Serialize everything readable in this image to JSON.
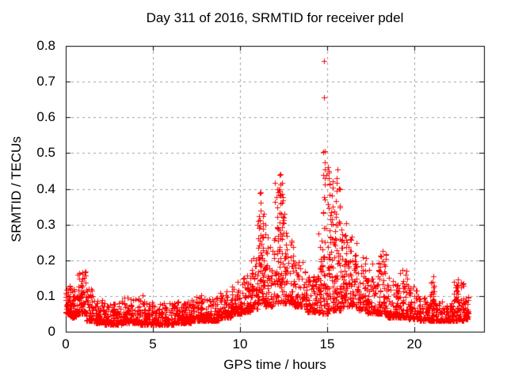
{
  "chart_data": {
    "type": "scatter",
    "title": "Day 311 of 2016, SRMTID for receiver pdel",
    "xlabel": "GPS time / hours",
    "ylabel": "SRMTID / TECUs",
    "xlim": [
      0,
      24
    ],
    "ylim": [
      0,
      0.8
    ],
    "xticks": [
      0,
      5,
      10,
      15,
      20
    ],
    "xticklabels": [
      "0",
      "5",
      "10",
      "15",
      "20"
    ],
    "yticks": [
      0,
      0.1,
      0.2,
      0.3,
      0.4,
      0.5,
      0.6,
      0.7,
      0.8
    ],
    "yticklabels": [
      "0",
      "0.1",
      "0.2",
      "0.3",
      "0.4",
      "0.5",
      "0.6",
      "0.7",
      "0.8"
    ],
    "grid": true,
    "legend": "none",
    "axis_color": "#000000",
    "grid_color": "#9e9e9e",
    "marker": {
      "shape": "plus",
      "color": "#ff0000",
      "size": 7
    },
    "bands_format": "[t_start_h, t_end_h, y_min_TECU, y_max_TECU, n_points] envelope of the dense scatter band",
    "bands": [
      [
        0.0,
        0.25,
        0.05,
        0.13,
        40
      ],
      [
        0.25,
        0.6,
        0.04,
        0.12,
        50
      ],
      [
        0.6,
        1.15,
        0.05,
        0.17,
        70
      ],
      [
        1.15,
        1.6,
        0.03,
        0.12,
        55
      ],
      [
        1.6,
        2.2,
        0.025,
        0.09,
        70
      ],
      [
        2.2,
        3.2,
        0.02,
        0.08,
        110
      ],
      [
        3.2,
        4.2,
        0.025,
        0.095,
        110
      ],
      [
        4.2,
        5.2,
        0.02,
        0.09,
        110
      ],
      [
        5.2,
        6.2,
        0.02,
        0.08,
        110
      ],
      [
        6.2,
        7.2,
        0.025,
        0.085,
        110
      ],
      [
        7.2,
        8.0,
        0.03,
        0.1,
        90
      ],
      [
        8.0,
        8.8,
        0.03,
        0.1,
        90
      ],
      [
        8.8,
        9.5,
        0.04,
        0.115,
        80
      ],
      [
        9.5,
        10.1,
        0.05,
        0.13,
        70
      ],
      [
        10.1,
        10.6,
        0.055,
        0.16,
        60
      ],
      [
        10.6,
        11.0,
        0.065,
        0.21,
        45
      ],
      [
        11.0,
        11.45,
        0.08,
        0.36,
        55
      ],
      [
        11.45,
        11.95,
        0.07,
        0.27,
        60
      ],
      [
        11.95,
        12.55,
        0.08,
        0.42,
        70
      ],
      [
        12.55,
        13.1,
        0.08,
        0.27,
        60
      ],
      [
        13.1,
        13.8,
        0.07,
        0.2,
        75
      ],
      [
        13.8,
        14.45,
        0.055,
        0.16,
        70
      ],
      [
        14.45,
        14.75,
        0.05,
        0.28,
        35
      ],
      [
        14.75,
        15.05,
        0.05,
        0.48,
        40
      ],
      [
        15.05,
        15.4,
        0.06,
        0.44,
        45
      ],
      [
        15.4,
        15.8,
        0.06,
        0.43,
        50
      ],
      [
        15.8,
        16.2,
        0.07,
        0.3,
        50
      ],
      [
        16.2,
        16.7,
        0.07,
        0.26,
        55
      ],
      [
        16.7,
        17.3,
        0.06,
        0.21,
        65
      ],
      [
        17.3,
        18.0,
        0.05,
        0.2,
        75
      ],
      [
        18.0,
        18.45,
        0.05,
        0.22,
        50
      ],
      [
        18.45,
        19.1,
        0.04,
        0.15,
        70
      ],
      [
        19.1,
        19.65,
        0.04,
        0.17,
        60
      ],
      [
        19.65,
        20.3,
        0.035,
        0.13,
        65
      ],
      [
        20.3,
        20.95,
        0.03,
        0.1,
        65
      ],
      [
        20.95,
        21.25,
        0.03,
        0.14,
        35
      ],
      [
        21.25,
        22.25,
        0.03,
        0.085,
        100
      ],
      [
        22.25,
        22.85,
        0.03,
        0.14,
        65
      ],
      [
        22.85,
        23.1,
        0.035,
        0.1,
        40
      ]
    ],
    "spikes_format": "[t_h, y_base_TECU, y_top_TECU, n_points] vertical spike columns",
    "spikes": [
      [
        0.93,
        0.09,
        0.165,
        7
      ],
      [
        3.4,
        0.03,
        0.095,
        4
      ],
      [
        4.35,
        0.03,
        0.1,
        4
      ],
      [
        7.75,
        0.04,
        0.105,
        4
      ],
      [
        9.85,
        0.05,
        0.135,
        5
      ],
      [
        11.08,
        0.14,
        0.31,
        8
      ],
      [
        11.18,
        0.18,
        0.385,
        10
      ],
      [
        11.32,
        0.1,
        0.3,
        7
      ],
      [
        12.15,
        0.14,
        0.38,
        9
      ],
      [
        12.3,
        0.18,
        0.435,
        11
      ],
      [
        12.42,
        0.12,
        0.36,
        8
      ],
      [
        12.62,
        0.1,
        0.28,
        6
      ],
      [
        14.62,
        0.08,
        0.24,
        6
      ],
      [
        14.82,
        0.12,
        0.5,
        10
      ],
      [
        15.12,
        0.18,
        0.445,
        9
      ],
      [
        15.28,
        0.14,
        0.42,
        8
      ],
      [
        15.55,
        0.16,
        0.43,
        9
      ],
      [
        15.72,
        0.12,
        0.4,
        7
      ],
      [
        16.05,
        0.1,
        0.3,
        7
      ],
      [
        16.35,
        0.09,
        0.26,
        6
      ],
      [
        18.2,
        0.07,
        0.225,
        6
      ],
      [
        19.35,
        0.06,
        0.175,
        5
      ],
      [
        21.05,
        0.045,
        0.15,
        8
      ],
      [
        22.5,
        0.05,
        0.145,
        6
      ]
    ],
    "outliers_format": "[t_h, y_TECU] individually visible extreme points",
    "outliers": [
      [
        14.82,
        0.757
      ],
      [
        14.8,
        0.655
      ],
      [
        14.85,
        0.505
      ],
      [
        14.88,
        0.475
      ],
      [
        15.1,
        0.45
      ],
      [
        15.58,
        0.455
      ],
      [
        12.32,
        0.44
      ],
      [
        11.2,
        0.39
      ]
    ],
    "seed": 2016311
  }
}
